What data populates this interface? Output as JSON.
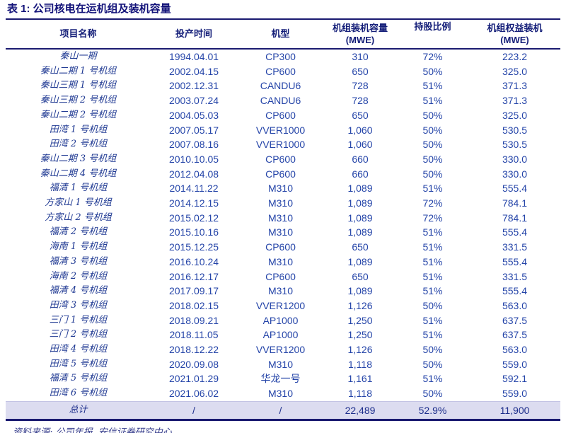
{
  "title": "表 1: 公司核电在运机组及装机容量",
  "colors": {
    "accent_navy": "#1a1a70",
    "header_text": "#131d78",
    "body_text": "#2444a8",
    "name_text": "#203a93",
    "total_row_bg": "#dcdcf0"
  },
  "columns": [
    {
      "line1": "项目名称",
      "line2": ""
    },
    {
      "line1": "投产时间",
      "line2": ""
    },
    {
      "line1": "机型",
      "line2": ""
    },
    {
      "line1": "机组装机容量",
      "line2": "(MWE)"
    },
    {
      "line1": "持股比例",
      "line2": ""
    },
    {
      "line1": "机组权益装机",
      "line2": "(MWE)"
    }
  ],
  "rows": [
    [
      "秦山一期",
      "1994.04.01",
      "CP300",
      "310",
      "72%",
      "223.2"
    ],
    [
      "秦山二期 1 号机组",
      "2002.04.15",
      "CP600",
      "650",
      "50%",
      "325.0"
    ],
    [
      "秦山三期 1 号机组",
      "2002.12.31",
      "CANDU6",
      "728",
      "51%",
      "371.3"
    ],
    [
      "秦山三期 2 号机组",
      "2003.07.24",
      "CANDU6",
      "728",
      "51%",
      "371.3"
    ],
    [
      "秦山二期 2 号机组",
      "2004.05.03",
      "CP600",
      "650",
      "50%",
      "325.0"
    ],
    [
      "田湾 1 号机组",
      "2007.05.17",
      "VVER1000",
      "1,060",
      "50%",
      "530.5"
    ],
    [
      "田湾 2 号机组",
      "2007.08.16",
      "VVER1000",
      "1,060",
      "50%",
      "530.5"
    ],
    [
      "秦山二期 3 号机组",
      "2010.10.05",
      "CP600",
      "660",
      "50%",
      "330.0"
    ],
    [
      "秦山二期 4 号机组",
      "2012.04.08",
      "CP600",
      "660",
      "50%",
      "330.0"
    ],
    [
      "福清 1 号机组",
      "2014.11.22",
      "M310",
      "1,089",
      "51%",
      "555.4"
    ],
    [
      "方家山 1 号机组",
      "2014.12.15",
      "M310",
      "1,089",
      "72%",
      "784.1"
    ],
    [
      "方家山 2 号机组",
      "2015.02.12",
      "M310",
      "1,089",
      "72%",
      "784.1"
    ],
    [
      "福清 2 号机组",
      "2015.10.16",
      "M310",
      "1,089",
      "51%",
      "555.4"
    ],
    [
      "海南 1 号机组",
      "2015.12.25",
      "CP600",
      "650",
      "51%",
      "331.5"
    ],
    [
      "福清 3 号机组",
      "2016.10.24",
      "M310",
      "1,089",
      "51%",
      "555.4"
    ],
    [
      "海南 2 号机组",
      "2016.12.17",
      "CP600",
      "650",
      "51%",
      "331.5"
    ],
    [
      "福清 4 号机组",
      "2017.09.17",
      "M310",
      "1,089",
      "51%",
      "555.4"
    ],
    [
      "田湾 3 号机组",
      "2018.02.15",
      "VVER1200",
      "1,126",
      "50%",
      "563.0"
    ],
    [
      "三门 1 号机组",
      "2018.09.21",
      "AP1000",
      "1,250",
      "51%",
      "637.5"
    ],
    [
      "三门 2 号机组",
      "2018.11.05",
      "AP1000",
      "1,250",
      "51%",
      "637.5"
    ],
    [
      "田湾 4 号机组",
      "2018.12.22",
      "VVER1200",
      "1,126",
      "50%",
      "563.0"
    ],
    [
      "田湾 5 号机组",
      "2020.09.08",
      "M310",
      "1,118",
      "50%",
      "559.0"
    ],
    [
      "福清 5 号机组",
      "2021.01.29",
      "华龙一号",
      "1,161",
      "51%",
      "592.1"
    ],
    [
      "田湾 6 号机组",
      "2021.06.02",
      "M310",
      "1,118",
      "50%",
      "559.0"
    ]
  ],
  "total_row": [
    "总计",
    "/",
    "/",
    "22,489",
    "52.9%",
    "11,900"
  ],
  "footer": {
    "source": "资料来源: 公司年报, 安信证券研究中心"
  }
}
